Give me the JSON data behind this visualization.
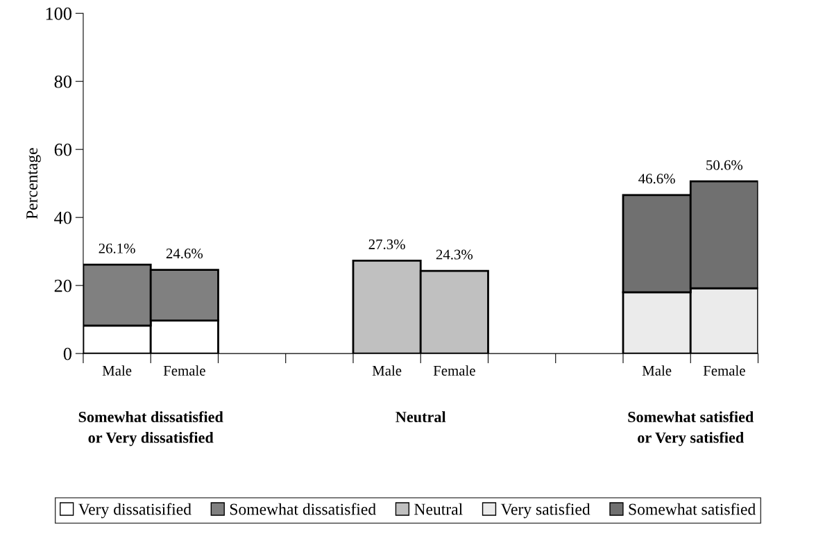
{
  "chart_data": {
    "type": "bar",
    "stacked": true,
    "ylabel": "Percentage",
    "categories": [
      "Male",
      "Female",
      null,
      null,
      "Male",
      "Female",
      null,
      null,
      "Male",
      "Female"
    ],
    "series": [
      {
        "name": "Very dissatisified",
        "color": "#ffffff",
        "values": [
          8.2,
          9.7,
          null,
          null,
          null,
          null,
          null,
          null,
          null,
          null
        ]
      },
      {
        "name": "Somewhat dissatisfied",
        "color": "#808080",
        "values": [
          17.9,
          14.9,
          null,
          null,
          null,
          null,
          null,
          null,
          null,
          null
        ]
      },
      {
        "name": "Neutral",
        "color": "#c0c0c0",
        "values": [
          null,
          null,
          null,
          null,
          27.3,
          24.3,
          null,
          null,
          null,
          null
        ]
      },
      {
        "name": "Very satisfied",
        "color": "#ebebeb",
        "values": [
          null,
          null,
          null,
          null,
          null,
          null,
          null,
          null,
          18.0,
          19.2
        ]
      },
      {
        "name": "Somewhat satisfied",
        "color": "#707070",
        "values": [
          null,
          null,
          null,
          null,
          null,
          null,
          null,
          null,
          28.6,
          31.4
        ]
      }
    ],
    "totals": [
      "26.1%",
      "24.6%",
      null,
      null,
      "27.3%",
      "24.3%",
      null,
      null,
      "46.6%",
      "50.6%"
    ],
    "annotations": [
      "Somewhat dissatisfied\nor Very dissatisfied",
      "Neutral",
      "Somewhat satisfied\nor Very satisfied"
    ],
    "ylim": [
      0,
      100
    ],
    "yticks": [
      0,
      20,
      40,
      60,
      80,
      100
    ],
    "grid": false,
    "legend": "bottom"
  }
}
